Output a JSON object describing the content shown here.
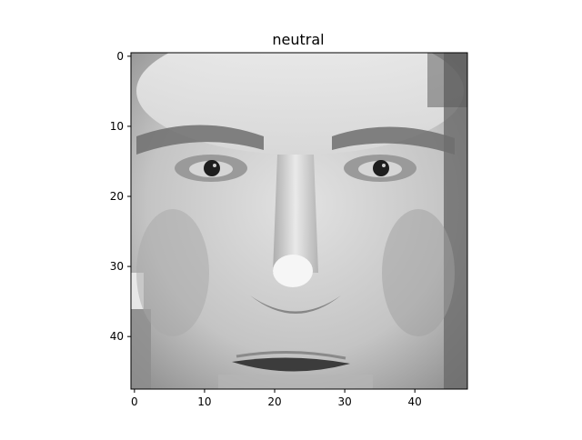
{
  "title": "neutral",
  "image": {
    "description_tag": "grayscale-face-portrait",
    "colormap": "gray",
    "rows": 48,
    "cols": 48
  },
  "axes": {
    "x_ticks": [
      0,
      10,
      20,
      30,
      40
    ],
    "y_ticks": [
      0,
      10,
      20,
      30,
      40
    ],
    "xlim": [
      -0.5,
      47.5
    ],
    "ylim": [
      47.5,
      -0.5
    ]
  }
}
